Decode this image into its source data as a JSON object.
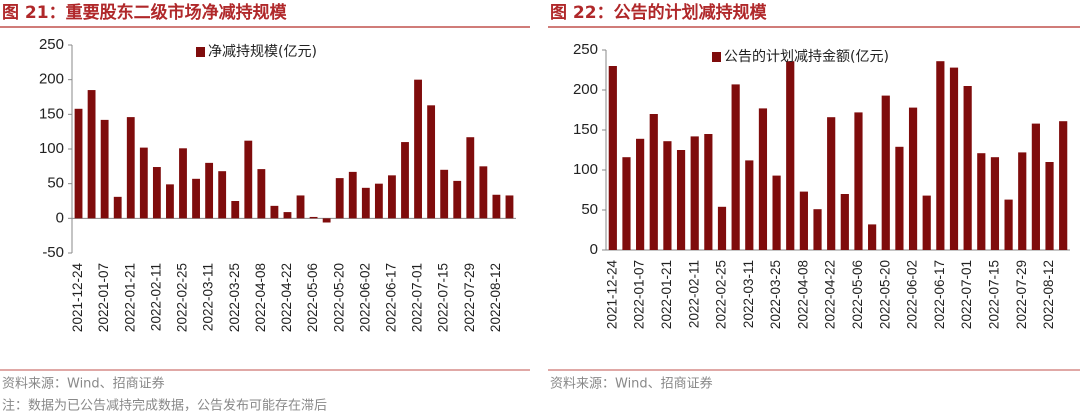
{
  "chart_data": [
    {
      "type": "bar",
      "title": "图 21：重要股东二级市场净减持规模",
      "categories": [
        "2021-12-24",
        null,
        "2022-01-07",
        null,
        "2022-01-21",
        null,
        "2022-02-11",
        null,
        "2022-02-25",
        null,
        "2022-03-11",
        null,
        "2022-03-25",
        null,
        "2022-04-08",
        null,
        "2022-04-22",
        null,
        "2022-05-06",
        null,
        "2022-05-20",
        null,
        "2022-06-02",
        null,
        "2022-06-17",
        null,
        "2022-07-01",
        null,
        "2022-07-15",
        null,
        "2022-07-29",
        null,
        "2022-08-12",
        null
      ],
      "series": [
        {
          "name": "净减持规模(亿元)",
          "color": "#7f0c0c",
          "values": [
            158,
            185,
            142,
            31,
            146,
            102,
            74,
            49,
            101,
            57,
            80,
            68,
            25,
            112,
            71,
            18,
            9,
            33,
            2,
            -6,
            58,
            67,
            44,
            50,
            62,
            110,
            200,
            163,
            70,
            54,
            117,
            75,
            34,
            33
          ]
        }
      ],
      "ylim": [
        -50,
        250
      ],
      "yticks": [
        -50,
        0,
        50,
        100,
        150,
        200,
        250
      ],
      "source": "资料来源：Wind、招商证券",
      "note": "注：数据为已公告减持完成数据，公告发布可能存在滞后"
    },
    {
      "type": "bar",
      "title": "图 22：公告的计划减持规模",
      "categories": [
        "2021-12-24",
        null,
        "2022-01-07",
        null,
        "2022-01-21",
        null,
        "2022-02-11",
        null,
        "2022-02-25",
        null,
        "2022-03-11",
        null,
        "2022-03-25",
        null,
        "2022-04-08",
        null,
        "2022-04-22",
        null,
        "2022-05-06",
        null,
        "2022-05-20",
        null,
        "2022-06-02",
        null,
        "2022-06-17",
        null,
        "2022-07-01",
        null,
        "2022-07-15",
        null,
        "2022-07-29",
        null,
        "2022-08-12",
        null
      ],
      "series": [
        {
          "name": "公告的计划减持金额(亿元)",
          "color": "#7f0c0c",
          "values": [
            230,
            116,
            139,
            170,
            136,
            125,
            142,
            145,
            54,
            207,
            112,
            177,
            93,
            236,
            73,
            51,
            166,
            70,
            172,
            32,
            193,
            129,
            178,
            68,
            236,
            228,
            205,
            121,
            116,
            63,
            122,
            158,
            110,
            161
          ]
        }
      ],
      "ylim": [
        0,
        250
      ],
      "yticks": [
        0,
        50,
        100,
        150,
        200,
        250
      ],
      "source": "资料来源：Wind、招商证券"
    }
  ]
}
